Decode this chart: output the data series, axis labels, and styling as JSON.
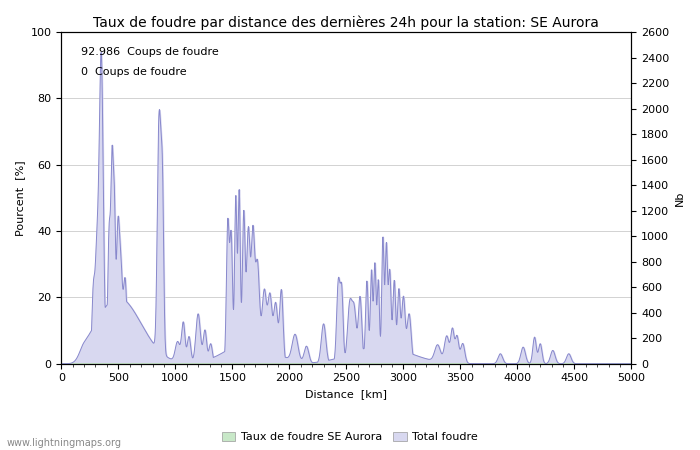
{
  "title": "Taux de foudre par distance des dernières 24h pour la station: SE Aurora",
  "xlabel": "Distance  [km]",
  "ylabel_left": "Pourcent  [%]",
  "ylabel_right": "Nb",
  "annotation_line1": "92.986  Coups de foudre",
  "annotation_line2": "0  Coups de foudre",
  "legend_label1": "Taux de foudre SE Aurora",
  "legend_label2": "Total foudre",
  "watermark": "www.lightningmaps.org",
  "xlim": [
    0,
    5000
  ],
  "ylim_left": [
    0,
    100
  ],
  "ylim_right": [
    0,
    2600
  ],
  "xticks": [
    0,
    500,
    1000,
    1500,
    2000,
    2500,
    3000,
    3500,
    4000,
    4500,
    5000
  ],
  "yticks_left": [
    0,
    20,
    40,
    60,
    80,
    100
  ],
  "yticks_right": [
    0,
    200,
    400,
    600,
    800,
    1000,
    1200,
    1400,
    1600,
    1800,
    2000,
    2200,
    2400,
    2600
  ],
  "line_color": "#8888cc",
  "fill_color_blue": "#d8d8f0",
  "fill_color_green": "#c8e8c8",
  "bg_color": "#ffffff",
  "grid_color": "#b0b0b0",
  "title_fontsize": 10,
  "label_fontsize": 8,
  "tick_fontsize": 8,
  "annotation_fontsize": 8
}
